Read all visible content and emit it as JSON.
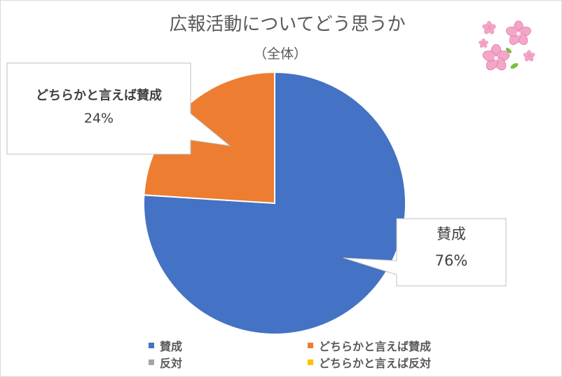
{
  "chart_data": {
    "type": "pie",
    "title": "広報活動についてどう思うか",
    "subtitle": "（全体）",
    "series": [
      {
        "name": "賛成",
        "value": 76,
        "color": "#4472c4",
        "label": "76%"
      },
      {
        "name": "どちらかと言えば賛成",
        "value": 24,
        "color": "#ed7d31",
        "label": "24%"
      },
      {
        "name": "反対",
        "value": 0,
        "color": "#a5a5a5",
        "label": ""
      },
      {
        "name": "どちらかと言えば反対",
        "value": 0,
        "color": "#ffc000",
        "label": ""
      }
    ],
    "legend": "bottom"
  }
}
